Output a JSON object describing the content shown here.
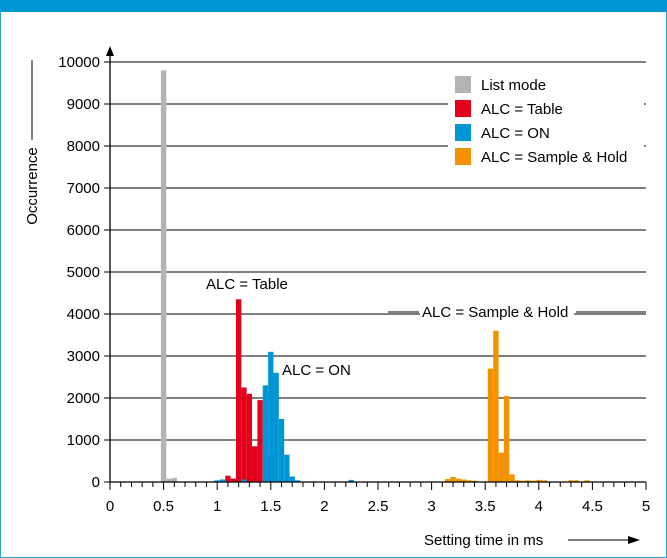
{
  "chart_data": {
    "type": "bar",
    "xlabel": "Setting time in ms",
    "ylabel": "Occurrence",
    "xlim": [
      0,
      5
    ],
    "ylim": [
      0,
      10000
    ],
    "xticks": [
      "0",
      "0.5",
      "1",
      "1.5",
      "2",
      "2.5",
      "3",
      "3.5",
      "4",
      "4.5",
      "5"
    ],
    "yticks": [
      "0",
      "1000",
      "2000",
      "3000",
      "4000",
      "5000",
      "6000",
      "7000",
      "8000",
      "9000",
      "10000"
    ],
    "bin_width": 0.05,
    "grid": "horizontal",
    "legend_position": "top-right",
    "series": [
      {
        "name": "List mode",
        "color": "#b1b3b6",
        "points": [
          [
            0.5,
            9800
          ],
          [
            0.55,
            80
          ],
          [
            0.6,
            100
          ]
        ]
      },
      {
        "name": "ALC = Table",
        "color": "#e2001a",
        "points": [
          [
            1.1,
            150
          ],
          [
            1.15,
            80
          ],
          [
            1.2,
            4350
          ],
          [
            1.25,
            2250
          ],
          [
            1.3,
            2100
          ],
          [
            1.35,
            850
          ],
          [
            1.4,
            1950
          ],
          [
            1.5,
            600
          ],
          [
            1.55,
            60
          ]
        ]
      },
      {
        "name": "ALC = ON",
        "color": "#0096d6",
        "points": [
          [
            1.0,
            40
          ],
          [
            1.05,
            60
          ],
          [
            1.25,
            60
          ],
          [
            1.45,
            2300
          ],
          [
            1.5,
            3100
          ],
          [
            1.55,
            2600
          ],
          [
            1.6,
            1500
          ],
          [
            1.65,
            650
          ],
          [
            1.7,
            130
          ],
          [
            1.75,
            40
          ],
          [
            2.25,
            50
          ]
        ]
      },
      {
        "name": "ALC = Sample & Hold",
        "color": "#f39200",
        "points": [
          [
            3.15,
            70
          ],
          [
            3.2,
            120
          ],
          [
            3.25,
            80
          ],
          [
            3.3,
            60
          ],
          [
            3.35,
            40
          ],
          [
            3.4,
            30
          ],
          [
            3.55,
            2700
          ],
          [
            3.6,
            3600
          ],
          [
            3.65,
            700
          ],
          [
            3.7,
            2050
          ],
          [
            3.75,
            180
          ],
          [
            3.8,
            40
          ],
          [
            3.85,
            30
          ],
          [
            3.9,
            40
          ],
          [
            3.95,
            30
          ],
          [
            4.0,
            50
          ],
          [
            4.05,
            40
          ],
          [
            4.3,
            40
          ],
          [
            4.35,
            40
          ],
          [
            4.45,
            40
          ]
        ]
      }
    ],
    "annotations": [
      {
        "text": "ALC = Table",
        "x": 1.3,
        "y": 4700
      },
      {
        "text": "ALC = ON",
        "x": 1.55,
        "y": 2700
      },
      {
        "text": "ALC = Sample & Hold",
        "x": 3.55,
        "y": 4000
      }
    ]
  }
}
